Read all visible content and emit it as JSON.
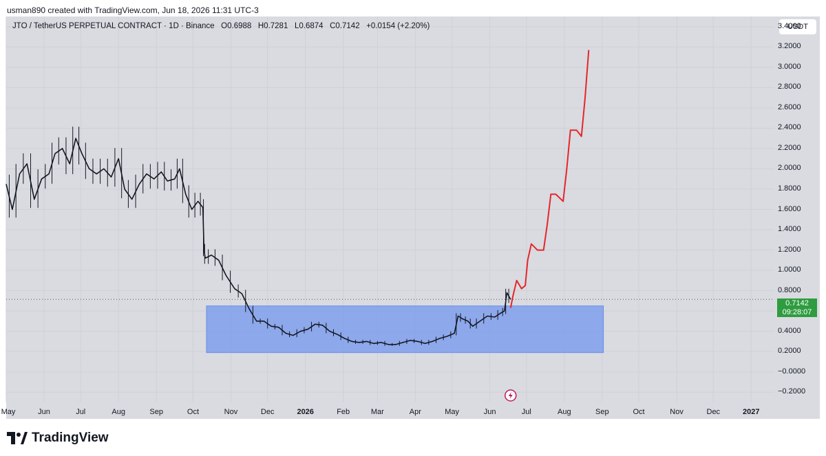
{
  "header": {
    "text": "usman890 created with TradingView.com, Jun 18, 2026 11:31 UTC-3"
  },
  "legend": {
    "symbol": "JTO / TetherUS PERPETUAL CONTRACT · 1D · Binance",
    "open": "O0.6988",
    "high": "H0.7281",
    "low": "L0.6874",
    "close": "C0.7142",
    "change": "+0.0154 (+2.20%)"
  },
  "currency": "USDT",
  "current_price": {
    "value": "0.7142",
    "countdown": "09:28:07"
  },
  "brand": {
    "name": "TradingView"
  },
  "colors": {
    "background": "#d9dbe0",
    "box": "#7f9fec",
    "projection": "#e5252a",
    "price": "#2e9c3f"
  },
  "chart_data": {
    "type": "line",
    "title": "",
    "x_axis": {
      "type": "date",
      "range": [
        "2025-05-01",
        "2027-01-20"
      ]
    },
    "y_axis": {
      "range": [
        -0.3,
        3.5
      ],
      "ticks": [
        "3.4000",
        "3.2000",
        "3.0000",
        "2.8000",
        "2.6000",
        "2.4000",
        "2.2000",
        "2.0000",
        "1.8000",
        "1.6000",
        "1.4000",
        "1.2000",
        "1.0000",
        "0.8000",
        "0.6000",
        "0.4000",
        "0.2000",
        "−0.0000",
        "−0.2000"
      ]
    },
    "x_ticks": [
      {
        "label": "May",
        "date": "2025-05-01",
        "bold": false
      },
      {
        "label": "Jun",
        "date": "2025-06-01",
        "bold": false
      },
      {
        "label": "Jul",
        "date": "2025-07-01",
        "bold": false
      },
      {
        "label": "Aug",
        "date": "2025-08-01",
        "bold": false
      },
      {
        "label": "Sep",
        "date": "2025-09-01",
        "bold": false
      },
      {
        "label": "Oct",
        "date": "2025-10-01",
        "bold": false
      },
      {
        "label": "Nov",
        "date": "2025-11-01",
        "bold": false
      },
      {
        "label": "Dec",
        "date": "2025-12-01",
        "bold": false
      },
      {
        "label": "2026",
        "date": "2026-01-01",
        "bold": true
      },
      {
        "label": "Feb",
        "date": "2026-02-01",
        "bold": false
      },
      {
        "label": "Mar",
        "date": "2026-03-01",
        "bold": false
      },
      {
        "label": "Apr",
        "date": "2026-04-01",
        "bold": false
      },
      {
        "label": "May",
        "date": "2026-05-01",
        "bold": false
      },
      {
        "label": "Jun",
        "date": "2026-06-01",
        "bold": false
      },
      {
        "label": "Jul",
        "date": "2026-07-01",
        "bold": false
      },
      {
        "label": "Aug",
        "date": "2026-08-01",
        "bold": false
      },
      {
        "label": "Sep",
        "date": "2026-09-01",
        "bold": false
      },
      {
        "label": "Oct",
        "date": "2026-10-01",
        "bold": false
      },
      {
        "label": "Nov",
        "date": "2026-11-01",
        "bold": false
      },
      {
        "label": "Dec",
        "date": "2026-12-01",
        "bold": false
      },
      {
        "label": "2027",
        "date": "2027-01-01",
        "bold": true
      }
    ],
    "price_series": [
      [
        "2025-05-01",
        1.85
      ],
      [
        "2025-05-06",
        1.6
      ],
      [
        "2025-05-12",
        1.95
      ],
      [
        "2025-05-18",
        2.05
      ],
      [
        "2025-05-24",
        1.7
      ],
      [
        "2025-05-30",
        1.9
      ],
      [
        "2025-06-05",
        1.95
      ],
      [
        "2025-06-10",
        2.15
      ],
      [
        "2025-06-16",
        2.2
      ],
      [
        "2025-06-22",
        2.05
      ],
      [
        "2025-06-27",
        2.3
      ],
      [
        "2025-07-02",
        2.15
      ],
      [
        "2025-07-08",
        2.0
      ],
      [
        "2025-07-14",
        1.95
      ],
      [
        "2025-07-20",
        2.0
      ],
      [
        "2025-07-26",
        1.92
      ],
      [
        "2025-08-01",
        2.1
      ],
      [
        "2025-08-06",
        1.8
      ],
      [
        "2025-08-12",
        1.7
      ],
      [
        "2025-08-18",
        1.85
      ],
      [
        "2025-08-24",
        1.95
      ],
      [
        "2025-08-30",
        1.9
      ],
      [
        "2025-09-05",
        1.97
      ],
      [
        "2025-09-10",
        1.88
      ],
      [
        "2025-09-16",
        1.9
      ],
      [
        "2025-09-20",
        2.0
      ],
      [
        "2025-09-25",
        1.75
      ],
      [
        "2025-09-30",
        1.6
      ],
      [
        "2025-10-05",
        1.68
      ],
      [
        "2025-10-09",
        1.62
      ],
      [
        "2025-10-10",
        1.2
      ],
      [
        "2025-10-11",
        1.12
      ],
      [
        "2025-10-16",
        1.15
      ],
      [
        "2025-10-22",
        1.1
      ],
      [
        "2025-10-28",
        0.95
      ],
      [
        "2025-11-04",
        0.82
      ],
      [
        "2025-11-10",
        0.77
      ],
      [
        "2025-11-16",
        0.62
      ],
      [
        "2025-11-22",
        0.5
      ],
      [
        "2025-11-28",
        0.5
      ],
      [
        "2025-12-04",
        0.45
      ],
      [
        "2025-12-10",
        0.44
      ],
      [
        "2025-12-16",
        0.38
      ],
      [
        "2025-12-22",
        0.36
      ],
      [
        "2025-12-28",
        0.4
      ],
      [
        "2026-01-03",
        0.42
      ],
      [
        "2026-01-09",
        0.47
      ],
      [
        "2026-01-15",
        0.46
      ],
      [
        "2026-01-21",
        0.4
      ],
      [
        "2026-01-27",
        0.37
      ],
      [
        "2026-02-02",
        0.33
      ],
      [
        "2026-02-08",
        0.3
      ],
      [
        "2026-02-14",
        0.29
      ],
      [
        "2026-02-20",
        0.3
      ],
      [
        "2026-02-26",
        0.28
      ],
      [
        "2026-03-04",
        0.29
      ],
      [
        "2026-03-10",
        0.27
      ],
      [
        "2026-03-16",
        0.27
      ],
      [
        "2026-03-22",
        0.29
      ],
      [
        "2026-03-28",
        0.31
      ],
      [
        "2026-04-03",
        0.3
      ],
      [
        "2026-04-09",
        0.28
      ],
      [
        "2026-04-15",
        0.3
      ],
      [
        "2026-04-21",
        0.33
      ],
      [
        "2026-04-27",
        0.35
      ],
      [
        "2026-05-03",
        0.38
      ],
      [
        "2026-05-06",
        0.55
      ],
      [
        "2026-05-10",
        0.52
      ],
      [
        "2026-05-14",
        0.5
      ],
      [
        "2026-05-18",
        0.45
      ],
      [
        "2026-05-24",
        0.5
      ],
      [
        "2026-05-30",
        0.55
      ],
      [
        "2026-06-05",
        0.54
      ],
      [
        "2026-06-10",
        0.58
      ],
      [
        "2026-06-13",
        0.6
      ],
      [
        "2026-06-15",
        0.78
      ],
      [
        "2026-06-18",
        0.7142
      ]
    ],
    "projection_series": [
      [
        "2026-06-18",
        0.63
      ],
      [
        "2026-06-20",
        0.75
      ],
      [
        "2026-06-23",
        0.9
      ],
      [
        "2026-06-27",
        0.82
      ],
      [
        "2026-06-30",
        0.85
      ],
      [
        "2026-07-02",
        1.1
      ],
      [
        "2026-07-05",
        1.26
      ],
      [
        "2026-07-10",
        1.2
      ],
      [
        "2026-07-15",
        1.2
      ],
      [
        "2026-07-18",
        1.45
      ],
      [
        "2026-07-21",
        1.75
      ],
      [
        "2026-07-25",
        1.75
      ],
      [
        "2026-07-31",
        1.68
      ],
      [
        "2026-08-03",
        2.0
      ],
      [
        "2026-08-06",
        2.38
      ],
      [
        "2026-08-11",
        2.38
      ],
      [
        "2026-08-15",
        2.32
      ],
      [
        "2026-08-18",
        2.7
      ],
      [
        "2026-08-21",
        3.17
      ]
    ],
    "accumulation_box": {
      "x_start": "2025-10-12",
      "x_end": "2026-09-02",
      "y_low": 0.19,
      "y_high": 0.65
    }
  }
}
